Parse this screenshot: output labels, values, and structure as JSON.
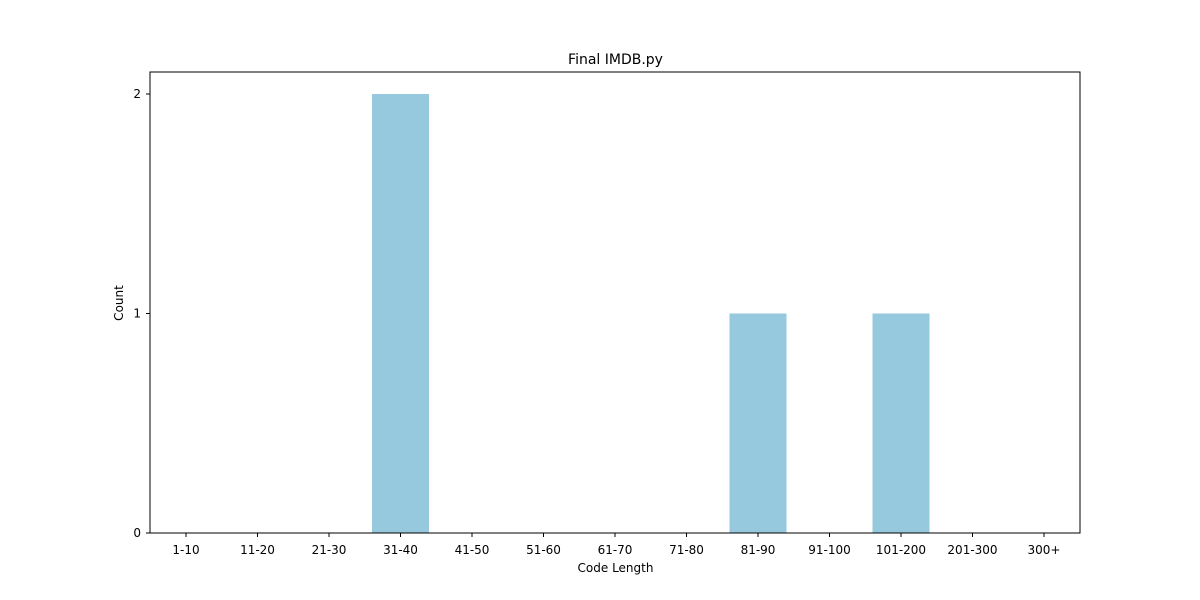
{
  "chart_data": {
    "type": "bar",
    "title": "Final IMDB.py",
    "xlabel": "Code Length",
    "ylabel": "Count",
    "categories": [
      "1-10",
      "11-20",
      "21-30",
      "31-40",
      "41-50",
      "51-60",
      "61-70",
      "71-80",
      "81-90",
      "91-100",
      "101-200",
      "201-300",
      "300+"
    ],
    "values": [
      0,
      0,
      0,
      2,
      0,
      0,
      0,
      0,
      1,
      0,
      1,
      0,
      0
    ],
    "yticks": [
      0,
      1,
      2
    ],
    "ylim": [
      0,
      2.1
    ],
    "grid": false,
    "bar_color": "#96c9de"
  }
}
